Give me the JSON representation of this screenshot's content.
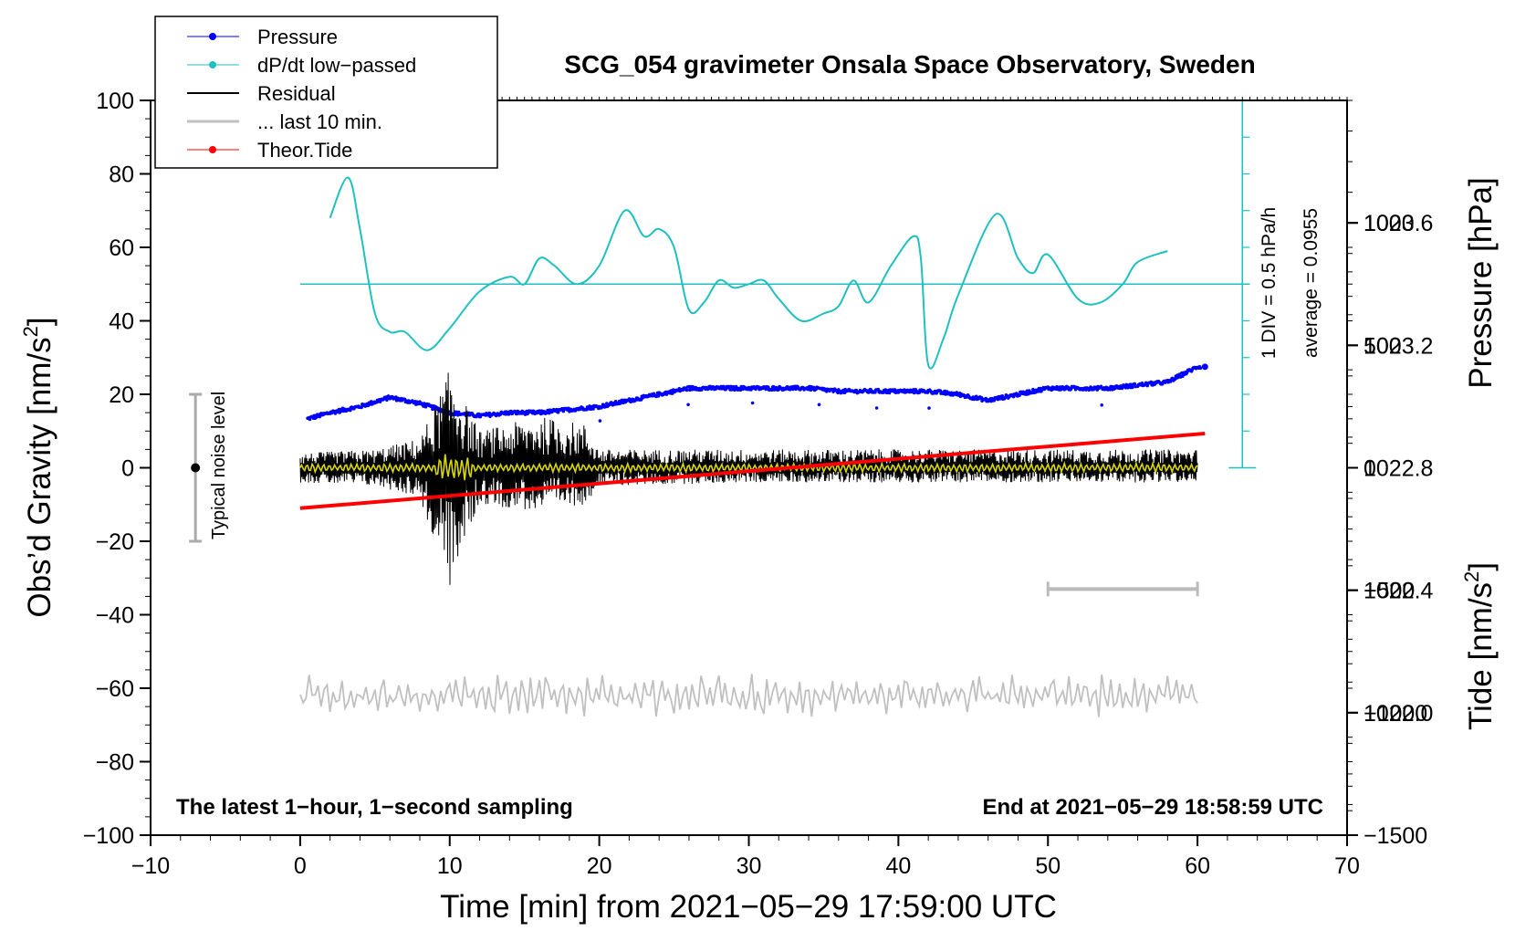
{
  "chart_data": {
    "type": "line",
    "title": "SCG_054 gravimeter Onsala Space Observatory, Sweden",
    "xlabel": "Time [min] from 2021−05−29 17:59:00 UTC",
    "ylabel_left": "Obs’d Gravity [nm/s",
    "ylabel_right_pressure": "Pressure [hPa]",
    "ylabel_right_tide": "Tide [nm/s",
    "unit_superscript": "2",
    "unit_close": "]",
    "xlim": [
      -10,
      70
    ],
    "ylim_left": [
      -100,
      100
    ],
    "pressure_lim": [
      1021.6,
      1024.0
    ],
    "tide_lim": [
      -1500,
      1500
    ],
    "x_ticks": [
      "−10",
      "0",
      "10",
      "20",
      "30",
      "40",
      "50",
      "60",
      "70"
    ],
    "x_tick_values": [
      -10,
      0,
      10,
      20,
      30,
      40,
      50,
      60,
      70
    ],
    "y_ticks_left": [
      "100",
      "80",
      "60",
      "40",
      "20",
      "0",
      "−20",
      "−40",
      "−60",
      "−80",
      "−100"
    ],
    "y_tick_values_left": [
      100,
      80,
      60,
      40,
      20,
      0,
      -20,
      -40,
      -60,
      -80,
      -100
    ],
    "pressure_ticks": [
      "1023.6",
      "1023.2",
      "1022.8",
      "1022.4",
      "1022.0"
    ],
    "pressure_tick_values": [
      1023.6,
      1023.2,
      1022.8,
      1022.4,
      1022.0
    ],
    "tide_ticks": [
      "1000",
      "500",
      "0",
      "−500",
      "−1000",
      "−1500"
    ],
    "tide_tick_values": [
      1000,
      500,
      0,
      -500,
      -1000,
      -1500
    ],
    "legend": [
      "Pressure",
      "dP/dt low−passed",
      "Residual",
      "... last 10 min.",
      "Theor.Tide"
    ],
    "colors": {
      "pressure": "#0000ff",
      "dpdt": "#20c0c0",
      "residual": "#000000",
      "smoothed": "#d8d800",
      "last10": "#c0c0c0",
      "tide": "#ff0000"
    },
    "series": [
      {
        "name": "Pressure",
        "axis": "pressure_hPa",
        "x": [
          0.5,
          2,
          4,
          6,
          8,
          10,
          12,
          14,
          16,
          18,
          20,
          22,
          24,
          26,
          28,
          30,
          32,
          34,
          36,
          38,
          40,
          42,
          44,
          46,
          48,
          50,
          52,
          54,
          56,
          58,
          60
        ],
        "values": [
          1022.96,
          1022.98,
          1023.0,
          1023.03,
          1023.01,
          1022.98,
          1022.97,
          1022.98,
          1022.98,
          1022.99,
          1023.0,
          1023.02,
          1023.04,
          1023.06,
          1023.06,
          1023.06,
          1023.06,
          1023.06,
          1023.05,
          1023.05,
          1023.05,
          1023.05,
          1023.04,
          1023.02,
          1023.04,
          1023.06,
          1023.06,
          1023.06,
          1023.07,
          1023.08,
          1023.13
        ]
      },
      {
        "name": "dP/dt low−passed",
        "axis": "left_nm_s2",
        "x": [
          2,
          3.2,
          4,
          5,
          6,
          7,
          8.5,
          10,
          12,
          14,
          15,
          16,
          17,
          18.5,
          20,
          21.7,
          23,
          24,
          25,
          26,
          27,
          28,
          29,
          30,
          31,
          32,
          33.5,
          35,
          36,
          37,
          38,
          39.5,
          41,
          41.5,
          42,
          43,
          44,
          46.5,
          48,
          49,
          50,
          52,
          53.5,
          55,
          56,
          58
        ],
        "values": [
          68,
          79,
          65,
          42,
          37,
          37,
          32,
          38,
          48,
          52,
          50,
          57,
          55,
          50,
          55,
          70,
          63,
          65,
          60,
          43,
          45,
          51,
          49,
          50,
          51,
          46,
          40,
          42,
          44,
          51,
          45,
          55,
          63,
          57,
          28,
          35,
          47,
          69,
          57,
          53,
          58,
          46,
          45,
          50,
          56,
          59
        ]
      },
      {
        "name": "Residual",
        "axis": "left_nm_s2",
        "x": [
          0,
          5,
          8,
          9,
          9.5,
          10,
          10.5,
          11,
          12,
          16,
          19,
          20,
          30,
          40,
          50,
          60
        ],
        "values_min": [
          -4,
          -5,
          -8,
          -22,
          -25,
          -33,
          -30,
          -20,
          -10,
          -12,
          -10,
          -5,
          -4,
          -4,
          -4,
          -4
        ],
        "values_max": [
          4,
          5,
          8,
          17,
          22,
          27,
          24,
          18,
          10,
          14,
          12,
          5,
          5,
          5,
          5,
          5
        ]
      },
      {
        "name": "... last 10 min.",
        "axis": "left_nm_s2",
        "x": [
          0,
          60
        ],
        "values": [
          -62,
          -62
        ],
        "range": [
          -68,
          -56
        ]
      },
      {
        "name": "Theor.Tide",
        "axis": "tide_nm_s2",
        "x": [
          0,
          60.5
        ],
        "values": [
          -165,
          140
        ]
      }
    ],
    "annotations": {
      "noise_label": "Typical noise level",
      "noise_range": [
        -20,
        20
      ],
      "div_label": "1 DIV = 0.5 hPa/h",
      "average_label": "average = 0.0955",
      "bottom_left": "The latest 1−hour, 1−second sampling",
      "bottom_right": "End at 2021−05−29 18:58:59 UTC"
    },
    "grid": false,
    "legend_position": "top-left"
  }
}
